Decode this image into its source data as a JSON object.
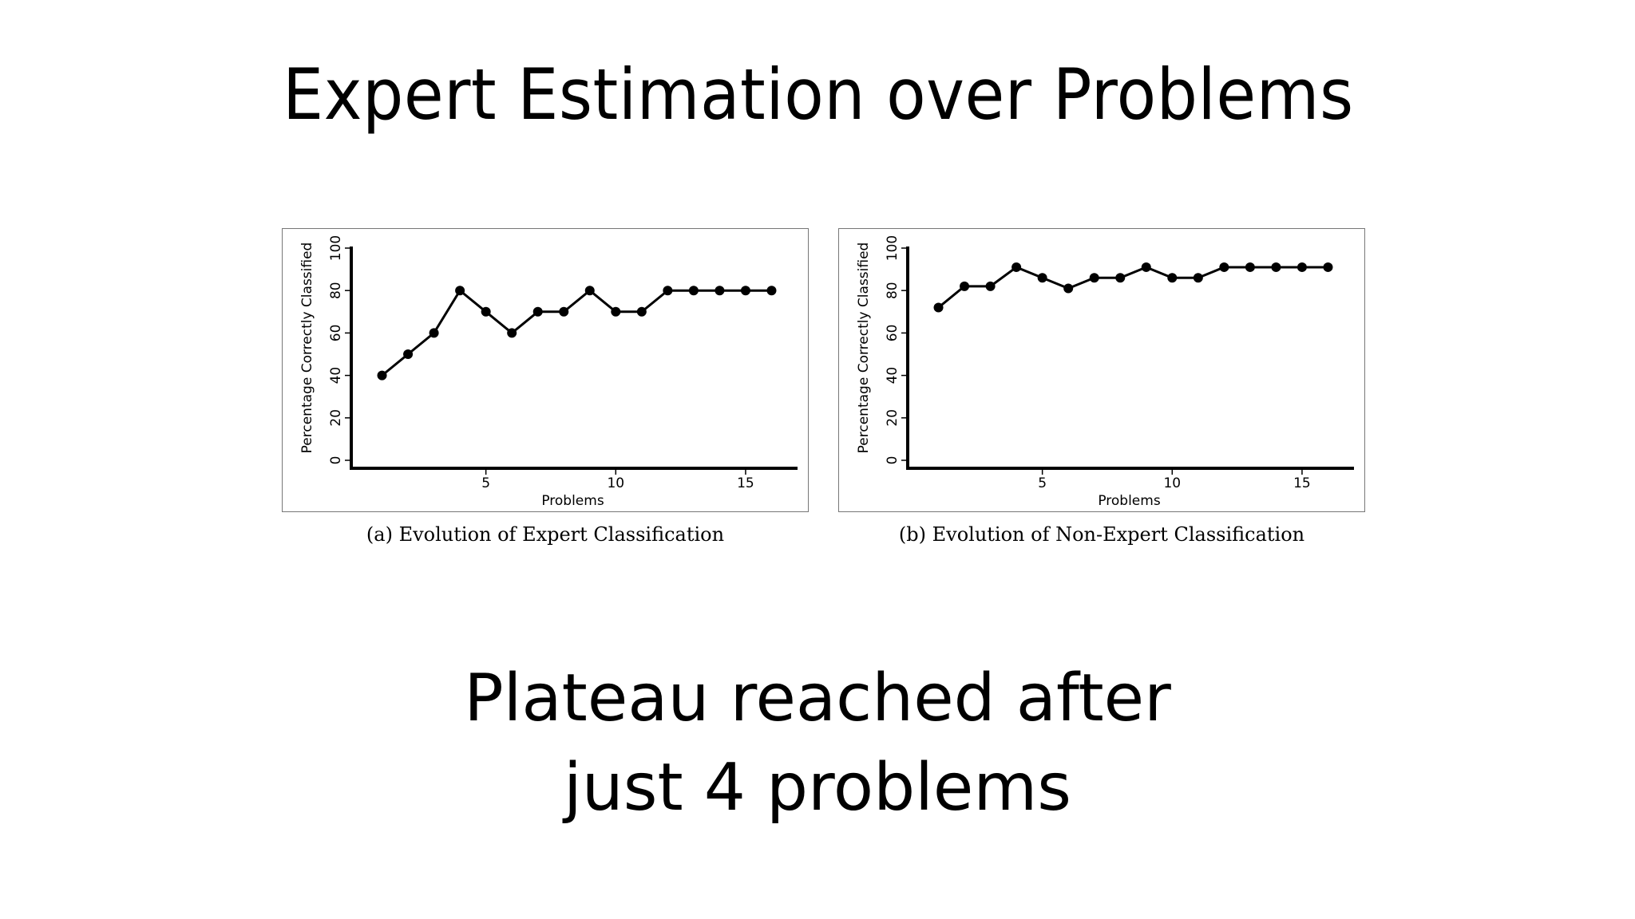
{
  "slide": {
    "title": "Expert Estimation over Problems",
    "takeaway_line1": "Plateau reached after",
    "takeaway_line2": "just 4 problems"
  },
  "chart_data": [
    {
      "type": "line",
      "caption": "(a) Evolution of Expert Classification",
      "xlabel": "Problems",
      "ylabel": "Percentage Correctly Classified",
      "x": [
        1,
        2,
        3,
        4,
        5,
        6,
        7,
        8,
        9,
        10,
        11,
        12,
        13,
        14,
        15,
        16
      ],
      "values": [
        40,
        50,
        60,
        80,
        70,
        60,
        70,
        70,
        80,
        70,
        70,
        80,
        80,
        80,
        80,
        80
      ],
      "xlim": [
        0,
        17
      ],
      "ylim": [
        0,
        100
      ],
      "xticks": [
        5,
        10,
        15
      ],
      "yticks": [
        0,
        20,
        40,
        60,
        80,
        100
      ],
      "grid": false
    },
    {
      "type": "line",
      "caption": "(b) Evolution of Non-Expert Classification",
      "xlabel": "Problems",
      "ylabel": "Percentage Correctly Classified",
      "x": [
        1,
        2,
        3,
        4,
        5,
        6,
        7,
        8,
        9,
        10,
        11,
        12,
        13,
        14,
        15,
        16
      ],
      "values": [
        72,
        82,
        82,
        91,
        86,
        81,
        86,
        86,
        91,
        86,
        86,
        91,
        91,
        91,
        91,
        91
      ],
      "xlim": [
        0,
        17
      ],
      "ylim": [
        0,
        100
      ],
      "xticks": [
        5,
        10,
        15
      ],
      "yticks": [
        0,
        20,
        40,
        60,
        80,
        100
      ],
      "grid": false
    }
  ]
}
